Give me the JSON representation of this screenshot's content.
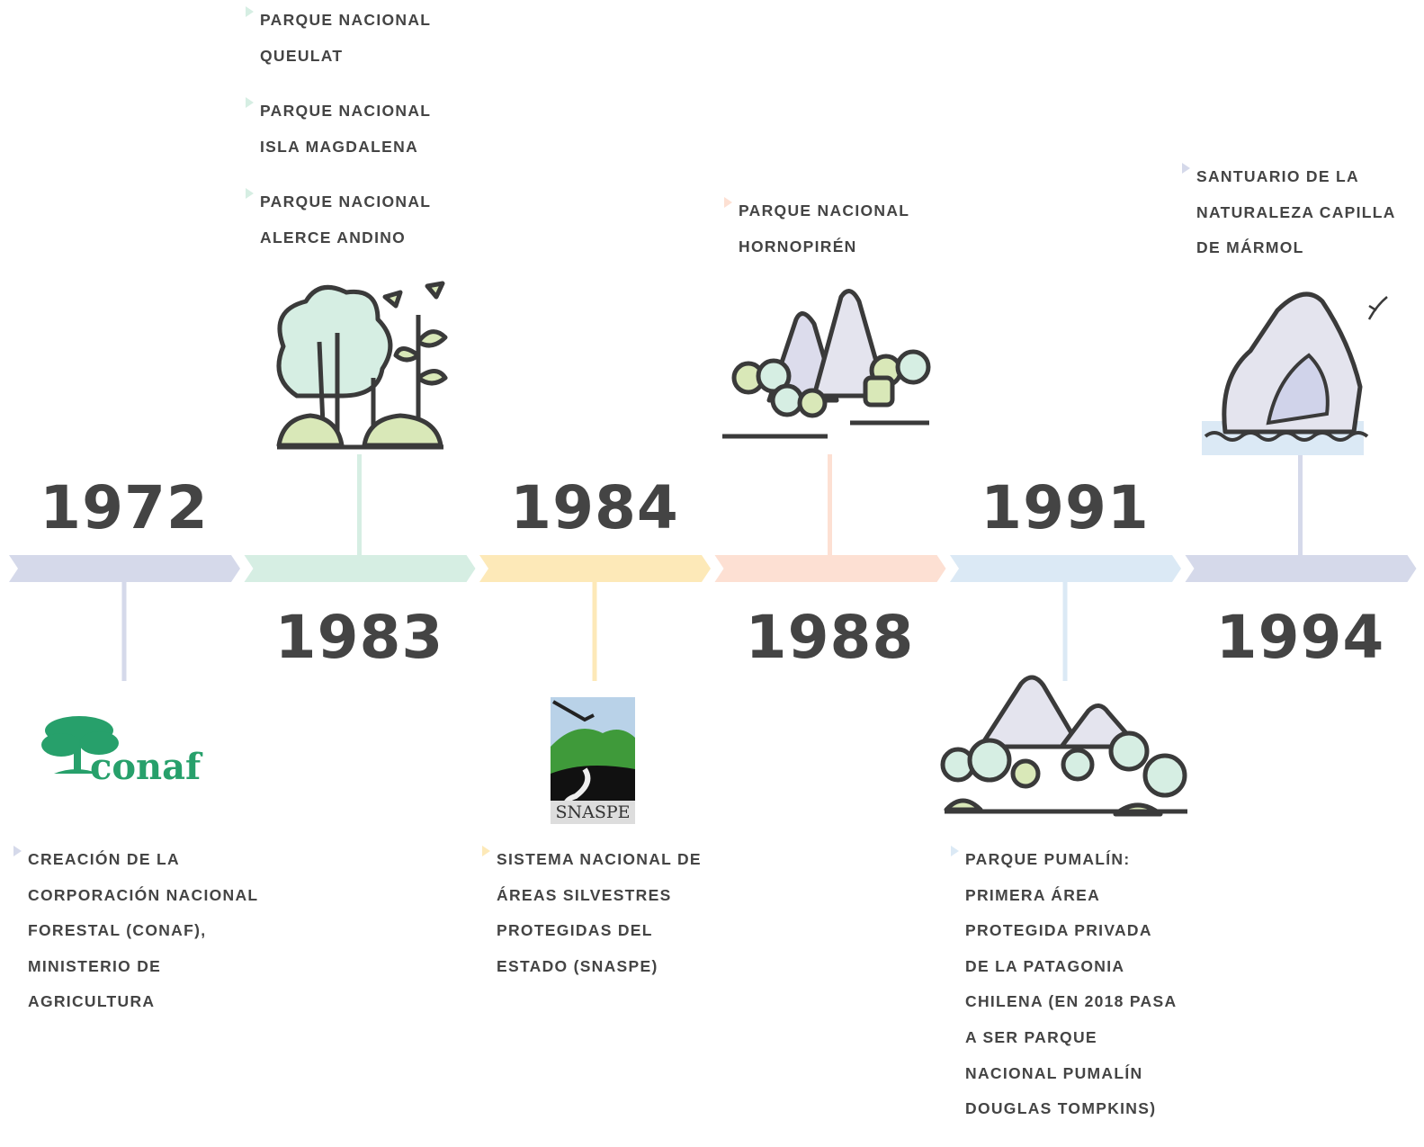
{
  "events": [
    {
      "year": "1972",
      "color": "#d5d9ea",
      "logo": "conaf",
      "items": [
        "CREACIÓN DE LA CORPORACIÓN NACIONAL FORESTAL (CONAF), MINISTERIO DE AGRICULTURA"
      ]
    },
    {
      "year": "1983",
      "color": "#d6eee3",
      "items": [
        "PARQUE NACIONAL QUEULAT",
        "PARQUE NACIONAL ISLA MAGDALENA",
        "PARQUE NACIONAL ALERCE ANDINO"
      ]
    },
    {
      "year": "1984",
      "color": "#fde9b8",
      "logo": "SNASPE",
      "items": [
        "SISTEMA NACIONAL DE ÁREAS SILVESTRES PROTEGIDAS DEL ESTADO (SNASPE)"
      ]
    },
    {
      "year": "1988",
      "color": "#fde0d3",
      "items": [
        "PARQUE NACIONAL HORNOPIRÉN"
      ]
    },
    {
      "year": "1991",
      "color": "#dbe9f5",
      "items": [
        "PARQUE PUMALÍN: PRIMERA ÁREA PROTEGIDA PRIVADA DE LA PATAGONIA CHILENA (EN 2018 PASA A SER PARQUE NACIONAL PUMALÍN DOUGLAS TOMPKINS)"
      ]
    },
    {
      "year": "1994",
      "color": "#d5d9ea",
      "items": [
        "SANTUARIO DE LA NATURALEZA CAPILLA DE MÁRMOL"
      ]
    }
  ]
}
